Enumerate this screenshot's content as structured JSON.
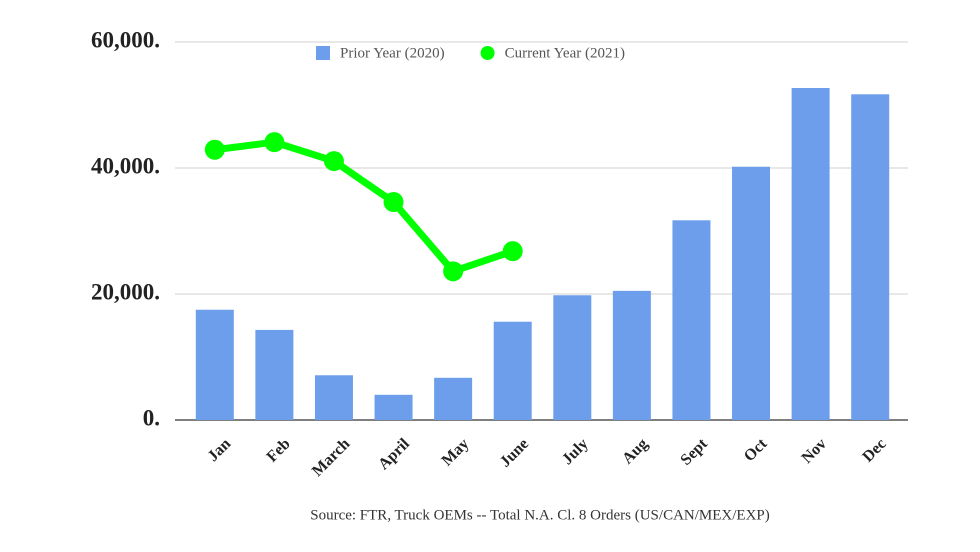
{
  "chart_data": {
    "type": "bar",
    "categories": [
      "Jan",
      "Feb",
      "March",
      "April",
      "May",
      "June",
      "July",
      "Aug",
      "Sept",
      "Oct",
      "Nov",
      "Dec"
    ],
    "series": [
      {
        "name": "Prior Year (2020)",
        "type": "bar",
        "color": "#6d9eeb",
        "values": [
          17500,
          14300,
          7100,
          4000,
          6700,
          15600,
          19800,
          20500,
          31700,
          40200,
          52700,
          51700
        ]
      },
      {
        "name": "Current Year (2021)",
        "type": "line",
        "color": "#00ff00",
        "values": [
          42900,
          44100,
          41100,
          34600,
          23600,
          26800,
          null,
          null,
          null,
          null,
          null,
          null
        ]
      }
    ],
    "ylim": [
      0,
      60000
    ],
    "yticks": [
      {
        "value": 0,
        "label": "0."
      },
      {
        "value": 20000,
        "label": "20,000."
      },
      {
        "value": 40000,
        "label": "40,000."
      },
      {
        "value": 60000,
        "label": "60,000."
      }
    ],
    "grid": true,
    "legend": "top",
    "caption": "Source: FTR, Truck OEMs -- Total N.A. Cl. 8 Orders (US/CAN/MEX/EXP)"
  }
}
